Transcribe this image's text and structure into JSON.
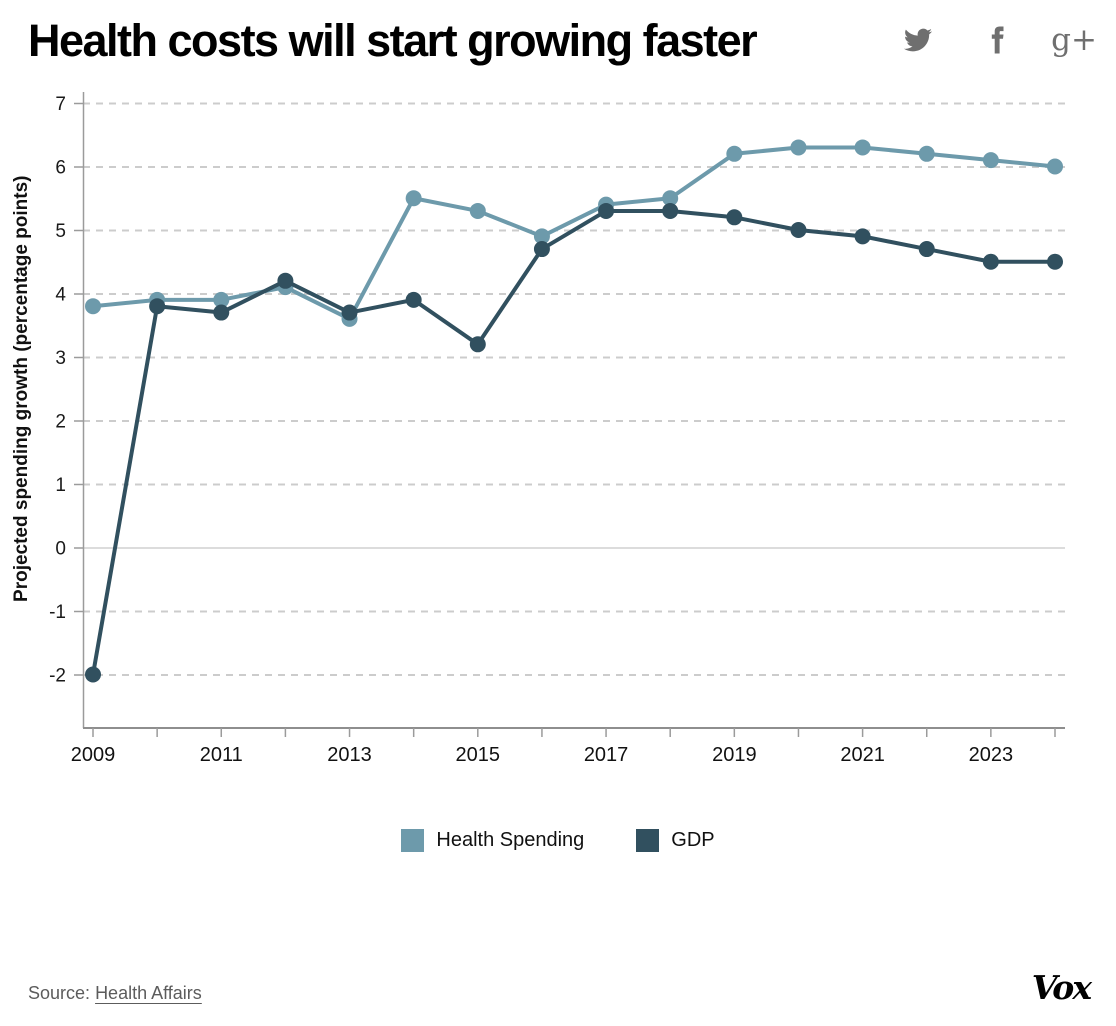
{
  "header": {
    "title": "Health costs will start growing faster",
    "social_icons": [
      {
        "name": "twitter-icon",
        "label": "Share on Twitter"
      },
      {
        "name": "facebook-icon",
        "label": "Share on Facebook"
      },
      {
        "name": "google-plus-icon",
        "label": "Share on Google+",
        "glyph": "g+"
      }
    ]
  },
  "chart_data": {
    "type": "line",
    "title": "Health costs will start growing faster",
    "xlabel": "",
    "ylabel": "Projected spending growth (percentage points)",
    "x": [
      2009,
      2010,
      2011,
      2012,
      2013,
      2014,
      2015,
      2016,
      2017,
      2018,
      2019,
      2020,
      2021,
      2022,
      2023,
      2024
    ],
    "xtick_labels": [
      "2009",
      "2011",
      "2013",
      "2015",
      "2017",
      "2019",
      "2021",
      "2023"
    ],
    "yticks": [
      7,
      6,
      5,
      4,
      3,
      2,
      1,
      0,
      -1,
      -2
    ],
    "ylim": [
      -2.9,
      7.15
    ],
    "grid": "horizontal dashed gridlines at integers; solid light line at 0",
    "legend_position": "bottom",
    "marker": "circle",
    "series": [
      {
        "name": "Health Spending",
        "color": "#6d9aab",
        "values": [
          3.8,
          3.9,
          3.9,
          4.1,
          3.6,
          5.5,
          5.3,
          4.9,
          5.4,
          5.5,
          6.2,
          6.3,
          6.3,
          6.2,
          6.1,
          6.0
        ]
      },
      {
        "name": "GDP",
        "color": "#31505f",
        "values": [
          -2.0,
          3.8,
          3.7,
          4.2,
          3.7,
          3.9,
          3.2,
          4.7,
          5.3,
          5.3,
          5.2,
          5.0,
          4.9,
          4.7,
          4.5,
          4.5
        ]
      }
    ],
    "style": {
      "grid_color": "#cccccc",
      "zero_line_color": "#dcdcdc",
      "axis_color": "#8e8e8e",
      "tick_color": "#9b9b9b"
    }
  },
  "footer": {
    "source_label": "Source:",
    "source_link_text": "Health Affairs",
    "brand": "Vox"
  }
}
